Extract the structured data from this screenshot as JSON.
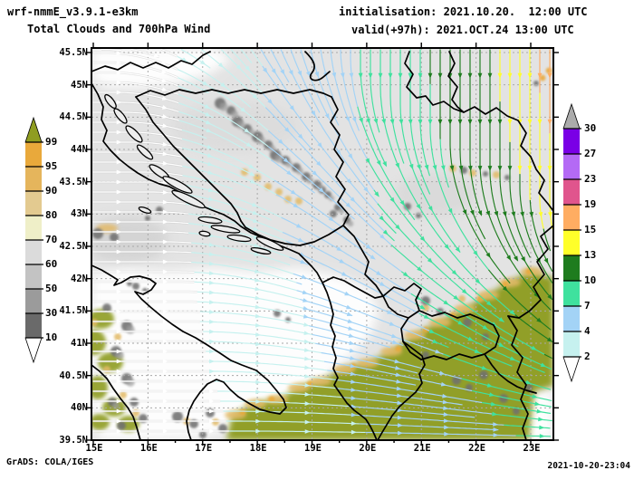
{
  "header": {
    "model": "wrf-nmmE_v3.9.1-e3km",
    "product": "Total Clouds and 700hPa Wind",
    "init_line": "initialisation: 2021.10.20.  12:00 UTC",
    "valid_line": "valid(+97h): 2021.OCT.24 13:00 UTC"
  },
  "footer": {
    "credit": "GrADS: COLA/IGES",
    "timestamp": "2021-10-20-23:04"
  },
  "axes": {
    "lat_labels": [
      "45.5N",
      "45N",
      "44.5N",
      "44N",
      "43.5N",
      "43N",
      "42.5N",
      "42N",
      "41.5N",
      "41N",
      "40.5N",
      "40N",
      "39.5N"
    ],
    "lon_labels": [
      "15E",
      "16E",
      "17E",
      "18E",
      "19E",
      "20E",
      "21E",
      "22E",
      "23E"
    ]
  },
  "colorbars": {
    "clouds": {
      "labels": [
        "99",
        "95",
        "90",
        "80",
        "70",
        "60",
        "50",
        "30",
        "10"
      ],
      "block_colors_top_to_bottom": [
        "#E9A93B",
        "#E5B55C",
        "#E3CA90",
        "#EFEFC8",
        "#DBDBDB",
        "#C3C3C3",
        "#9B9B9B",
        "#6A6A6A"
      ],
      "over_color": "#8F9D21",
      "under_color": "#FFFFFF"
    },
    "wind": {
      "labels": [
        "30",
        "27",
        "23",
        "19",
        "15",
        "13",
        "10",
        "7",
        "4",
        "2"
      ],
      "block_colors_top_to_bottom": [
        "#7A00E6",
        "#B46AF5",
        "#E0558D",
        "#FFAD62",
        "#FFFF2A",
        "#1E7C1E",
        "#3FE19E",
        "#A3D3F6",
        "#C6F1EF"
      ],
      "over_color": "#ABABAB",
      "under_color": "#FFFFFF"
    }
  }
}
